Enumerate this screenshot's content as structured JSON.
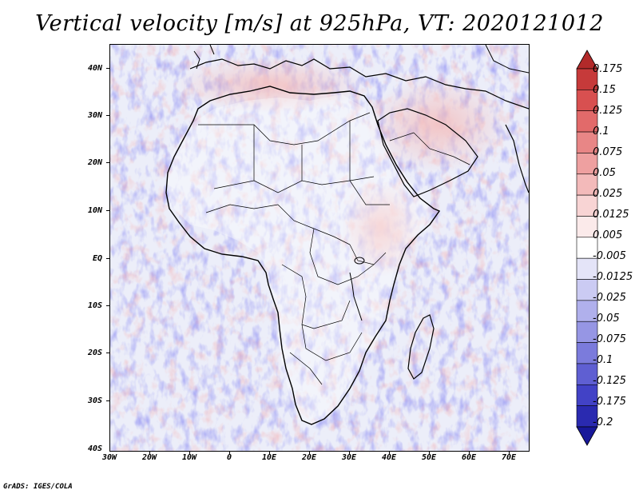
{
  "title": "Vertical velocity [m/s] at 925hPa, VT: 2020121012",
  "footer": "GrADS: IGES/COLA",
  "map": {
    "region": "Africa",
    "lat_range": [
      -40,
      45
    ],
    "lon_range": [
      -30,
      75
    ],
    "lat_labels": [
      "40N",
      "30N",
      "20N",
      "10N",
      "EQ",
      "10S",
      "20S",
      "30S",
      "40S"
    ],
    "lon_labels": [
      "30W",
      "20W",
      "10W",
      "0",
      "10E",
      "20E",
      "30E",
      "40E",
      "50E",
      "60E",
      "70E"
    ]
  },
  "colorbar": {
    "labels": [
      "0.175",
      "0.15",
      "0.125",
      "0.1",
      "0.075",
      "0.05",
      "0.025",
      "0.0125",
      "0.005",
      "-0.005",
      "-0.0125",
      "-0.025",
      "-0.05",
      "-0.075",
      "-0.1",
      "-0.125",
      "-0.175",
      "-0.2"
    ],
    "colors": [
      "#b22a2a",
      "#c63a3a",
      "#d85050",
      "#e26a6a",
      "#e88686",
      "#eea0a0",
      "#f3baba",
      "#f8d4d4",
      "#fbeaea",
      "#ffffff",
      "#e4e4f8",
      "#cbcbf3",
      "#b0b0ec",
      "#9696e4",
      "#7b7bdc",
      "#5f5fd2",
      "#4242c6",
      "#2a2ab0",
      "#18189a"
    ]
  }
}
